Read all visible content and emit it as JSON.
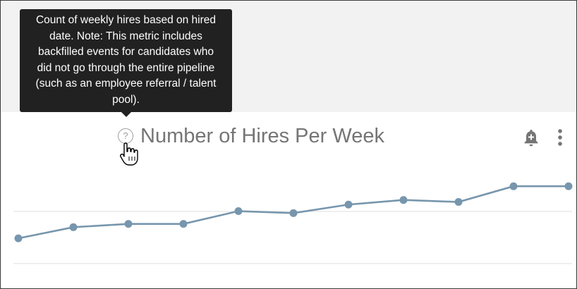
{
  "tooltip": {
    "lines": [
      "Count of weekly hires based on hired",
      "date. Note: This metric includes",
      "backfilled events for candidates who",
      "did not go through the entire pipeline",
      "(such as an employee referral / talent",
      "pool)."
    ]
  },
  "header": {
    "help_label": "?",
    "title": "Number of Hires Per Week",
    "add_alert_icon": "bell-plus-icon",
    "more_icon": "more-vert-icon"
  },
  "chart_data": {
    "type": "line",
    "x": [
      1,
      2,
      3,
      4,
      5,
      6,
      7,
      8,
      9,
      10,
      11
    ],
    "series": [
      {
        "values": [
          -8.2,
          -4.8,
          -3.8,
          -3.8,
          0.1,
          -0.5,
          2.1,
          3.5,
          2.9,
          7.7,
          7.7
        ]
      }
    ],
    "ylim": [
      -17,
      17
    ],
    "grid": true,
    "colors": {
      "line": "#7796ad",
      "marker": "#7796ad",
      "grid": "#e5e5e5"
    }
  }
}
